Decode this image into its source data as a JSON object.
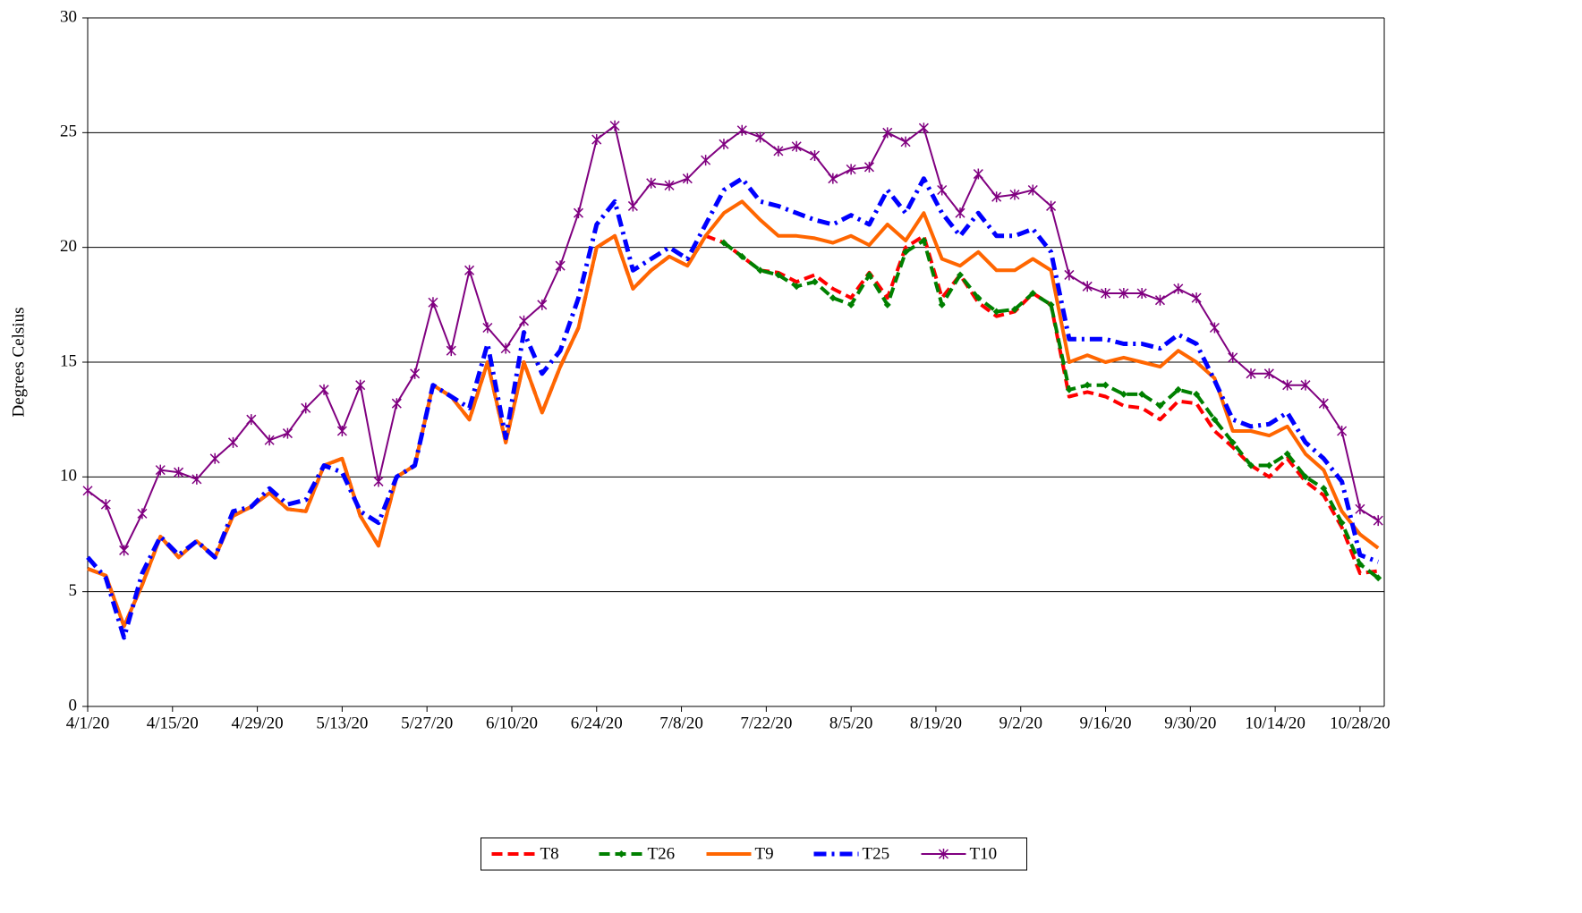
{
  "chart_data": {
    "type": "line",
    "y_label": "Degrees Celsius",
    "x": [
      "4/1/20",
      "4/4/20",
      "4/7/20",
      "4/10/20",
      "4/13/20",
      "4/16/20",
      "4/19/20",
      "4/22/20",
      "4/25/20",
      "4/28/20",
      "5/1/20",
      "5/4/20",
      "5/7/20",
      "5/10/20",
      "5/13/20",
      "5/16/20",
      "5/19/20",
      "5/22/20",
      "5/25/20",
      "5/28/20",
      "5/31/20",
      "6/3/20",
      "6/6/20",
      "6/9/20",
      "6/12/20",
      "6/15/20",
      "6/18/20",
      "6/21/20",
      "6/24/20",
      "6/27/20",
      "6/30/20",
      "7/3/20",
      "7/6/20",
      "7/9/20",
      "7/12/20",
      "7/15/20",
      "7/18/20",
      "7/21/20",
      "7/24/20",
      "7/27/20",
      "7/30/20",
      "8/2/20",
      "8/5/20",
      "8/8/20",
      "8/11/20",
      "8/14/20",
      "8/17/20",
      "8/20/20",
      "8/23/20",
      "8/26/20",
      "8/29/20",
      "9/1/20",
      "9/4/20",
      "9/7/20",
      "9/10/20",
      "9/13/20",
      "9/16/20",
      "9/19/20",
      "9/22/20",
      "9/25/20",
      "9/28/20",
      "10/1/20",
      "10/4/20",
      "10/7/20",
      "10/10/20",
      "10/13/20",
      "10/16/20",
      "10/19/20",
      "10/22/20",
      "10/25/20",
      "10/28/20",
      "10/31/20"
    ],
    "xlim": [
      "4/1/20",
      "11/1/20"
    ],
    "xticks": [
      "4/1/20",
      "4/15/20",
      "4/29/20",
      "5/13/20",
      "5/27/20",
      "6/10/20",
      "6/24/20",
      "7/8/20",
      "7/22/20",
      "8/5/20",
      "8/19/20",
      "9/2/20",
      "9/16/20",
      "9/30/20",
      "10/14/20",
      "10/28/20"
    ],
    "ylim": [
      0,
      30
    ],
    "yticks": [
      0,
      5,
      10,
      15,
      20,
      25,
      30
    ],
    "grid": true,
    "legend": "bottom",
    "series": [
      {
        "name": "T8",
        "color": "#ff0000",
        "dash": "12,6",
        "width": 4,
        "values": [
          6.0,
          5.7,
          3.5,
          5.3,
          7.4,
          6.5,
          7.2,
          6.5,
          8.3,
          8.7,
          9.3,
          8.6,
          8.5,
          10.5,
          10.8,
          8.3,
          7.0,
          10.0,
          10.5,
          14.0,
          13.5,
          12.5,
          15.0,
          11.5,
          15.0,
          12.8,
          14.8,
          16.5,
          20.0,
          20.5,
          18.2,
          19.0,
          19.6,
          19.2,
          20.5,
          20.2,
          19.6,
          19.0,
          18.9,
          18.5,
          18.8,
          18.2,
          17.8,
          18.9,
          17.8,
          20.0,
          20.5,
          17.8,
          18.8,
          17.6,
          17.0,
          17.2,
          18.0,
          17.5,
          13.5,
          13.7,
          13.5,
          13.1,
          13.0,
          12.5,
          13.3,
          13.2,
          12.0,
          11.3,
          10.5,
          10.0,
          10.8,
          9.8,
          9.2,
          7.8,
          5.8,
          5.9
        ]
      },
      {
        "name": "T26",
        "color": "#008000",
        "dash": "12,6",
        "width": 4,
        "marker": "diamond",
        "values": [
          null,
          null,
          null,
          null,
          null,
          null,
          null,
          null,
          null,
          null,
          null,
          null,
          null,
          null,
          null,
          null,
          null,
          null,
          null,
          null,
          null,
          null,
          null,
          null,
          null,
          null,
          null,
          null,
          null,
          null,
          null,
          null,
          null,
          null,
          null,
          20.2,
          19.6,
          19.0,
          18.8,
          18.3,
          18.5,
          17.8,
          17.5,
          18.8,
          17.5,
          19.8,
          20.3,
          17.5,
          18.8,
          17.8,
          17.2,
          17.3,
          18.0,
          17.5,
          13.8,
          14.0,
          14.0,
          13.6,
          13.6,
          13.1,
          13.8,
          13.6,
          12.5,
          11.5,
          10.5,
          10.5,
          11.0,
          10.0,
          9.5,
          8.0,
          6.2,
          5.6
        ]
      },
      {
        "name": "T9",
        "color": "#ff6600",
        "width": 4,
        "values": [
          6.0,
          5.7,
          3.5,
          5.3,
          7.4,
          6.5,
          7.2,
          6.5,
          8.3,
          8.7,
          9.3,
          8.6,
          8.5,
          10.5,
          10.8,
          8.3,
          7.0,
          10.0,
          10.5,
          14.0,
          13.5,
          12.5,
          15.0,
          11.5,
          15.0,
          12.8,
          14.8,
          16.5,
          20.0,
          20.5,
          18.2,
          19.0,
          19.6,
          19.2,
          20.5,
          21.5,
          22.0,
          21.2,
          20.5,
          20.5,
          20.4,
          20.2,
          20.5,
          20.1,
          21.0,
          20.3,
          21.5,
          19.5,
          19.2,
          19.8,
          19.0,
          19.0,
          19.5,
          19.0,
          15.0,
          15.3,
          15.0,
          15.2,
          15.0,
          14.8,
          15.5,
          15.0,
          14.3,
          12.0,
          12.0,
          11.8,
          12.2,
          11.0,
          10.3,
          8.5,
          7.5,
          6.9
        ]
      },
      {
        "name": "T25",
        "color": "#0000ff",
        "dash": "14,6,3,6",
        "width": 5,
        "values": [
          6.5,
          5.6,
          3.0,
          5.8,
          7.4,
          6.6,
          7.2,
          6.5,
          8.5,
          8.7,
          9.5,
          8.8,
          9.0,
          10.5,
          10.2,
          8.5,
          8.0,
          10.0,
          10.5,
          14.0,
          13.5,
          13.0,
          15.8,
          11.7,
          16.3,
          14.5,
          15.5,
          17.8,
          21.0,
          22.0,
          19.0,
          19.5,
          20.0,
          19.5,
          21.0,
          22.5,
          23.0,
          22.0,
          21.8,
          21.5,
          21.2,
          21.0,
          21.4,
          21.0,
          22.5,
          21.5,
          23.0,
          21.5,
          20.5,
          21.5,
          20.5,
          20.5,
          20.8,
          19.8,
          16.0,
          16.0,
          16.0,
          15.8,
          15.8,
          15.6,
          16.2,
          15.8,
          14.2,
          12.5,
          12.2,
          12.3,
          12.8,
          11.5,
          10.8,
          9.8,
          6.6,
          6.3
        ]
      },
      {
        "name": "T10",
        "color": "#800080",
        "width": 2,
        "marker": "star",
        "values": [
          9.4,
          8.8,
          6.8,
          8.4,
          10.3,
          10.2,
          9.9,
          10.8,
          11.5,
          12.5,
          11.6,
          11.9,
          13.0,
          13.8,
          12.0,
          14.0,
          9.8,
          13.2,
          14.5,
          17.6,
          15.5,
          19.0,
          16.5,
          15.6,
          16.8,
          17.5,
          19.2,
          21.5,
          24.7,
          25.3,
          21.8,
          22.8,
          22.7,
          23.0,
          23.8,
          24.5,
          25.1,
          24.8,
          24.2,
          24.4,
          24.0,
          23.0,
          23.4,
          23.5,
          25.0,
          24.6,
          25.2,
          22.5,
          21.5,
          23.2,
          22.2,
          22.3,
          22.5,
          21.8,
          18.8,
          18.3,
          18.0,
          18.0,
          18.0,
          17.7,
          18.2,
          17.8,
          16.5,
          15.2,
          14.5,
          14.5,
          14.0,
          14.0,
          13.2,
          12.0,
          8.6,
          8.1
        ]
      }
    ]
  }
}
